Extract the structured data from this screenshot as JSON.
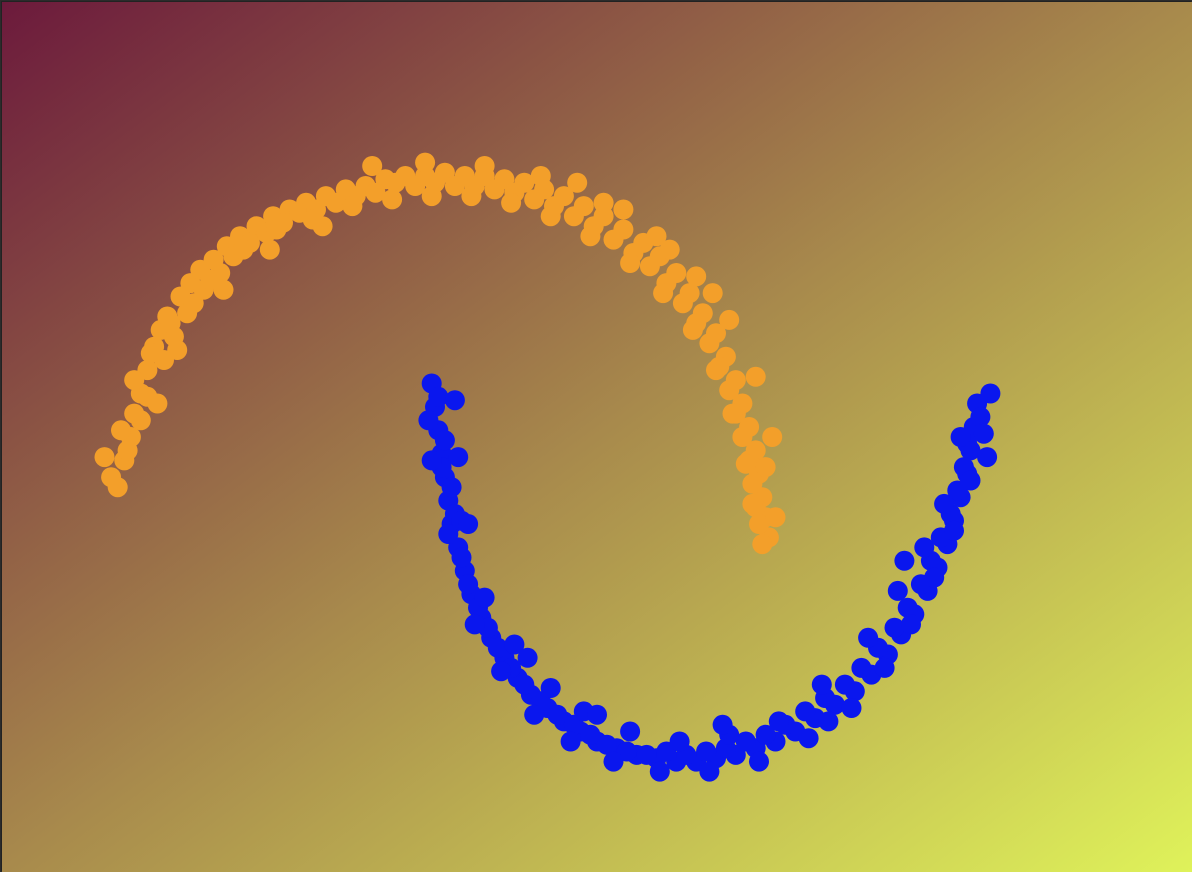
{
  "chart_data": {
    "type": "scatter",
    "title": "",
    "xlabel": "",
    "ylabel": "",
    "xlim": [
      -1.3,
      2.3
    ],
    "ylim": [
      -0.8,
      1.8
    ],
    "grid": false,
    "background_gradient": {
      "top_left": "#6c1a3c",
      "middle": "#a88a4c",
      "bottom_right": "#dff25a"
    },
    "series": [
      {
        "color": "#f39f2a",
        "points": [
          [
            -0.95,
            0.35
          ],
          [
            -0.93,
            0.43
          ],
          [
            -0.91,
            0.5
          ],
          [
            -0.9,
            0.57
          ],
          [
            -0.88,
            0.63
          ],
          [
            -0.86,
            0.7
          ],
          [
            -0.84,
            0.77
          ],
          [
            -0.82,
            0.82
          ],
          [
            -0.8,
            0.86
          ],
          [
            -0.76,
            0.92
          ],
          [
            -0.73,
            0.96
          ],
          [
            -0.7,
            1.0
          ],
          [
            -0.66,
            1.03
          ],
          [
            -0.62,
            1.07
          ],
          [
            -0.58,
            1.1
          ],
          [
            -0.53,
            1.13
          ],
          [
            -0.48,
            1.16
          ],
          [
            -0.43,
            1.18
          ],
          [
            -0.38,
            1.2
          ],
          [
            -0.32,
            1.22
          ],
          [
            -0.26,
            1.24
          ],
          [
            -0.2,
            1.25
          ],
          [
            -0.14,
            1.27
          ],
          [
            -0.08,
            1.28
          ],
          [
            -0.02,
            1.28
          ],
          [
            0.04,
            1.29
          ],
          [
            0.1,
            1.28
          ],
          [
            0.16,
            1.28
          ],
          [
            0.22,
            1.27
          ],
          [
            0.28,
            1.26
          ],
          [
            0.34,
            1.24
          ],
          [
            0.4,
            1.22
          ],
          [
            0.46,
            1.19
          ],
          [
            0.52,
            1.16
          ],
          [
            0.58,
            1.12
          ],
          [
            0.64,
            1.08
          ],
          [
            0.69,
            1.04
          ],
          [
            0.74,
            0.99
          ],
          [
            0.78,
            0.93
          ],
          [
            0.82,
            0.87
          ],
          [
            0.86,
            0.81
          ],
          [
            0.89,
            0.74
          ],
          [
            0.92,
            0.67
          ],
          [
            0.94,
            0.6
          ],
          [
            0.96,
            0.53
          ],
          [
            0.98,
            0.46
          ],
          [
            0.99,
            0.39
          ],
          [
            1.0,
            0.32
          ],
          [
            1.01,
            0.26
          ],
          [
            1.02,
            0.2
          ],
          [
            -0.97,
            0.38
          ],
          [
            -0.92,
            0.46
          ],
          [
            -0.88,
            0.55
          ],
          [
            -0.86,
            0.62
          ],
          [
            -0.81,
            0.73
          ],
          [
            -0.78,
            0.8
          ],
          [
            -0.74,
            0.87
          ],
          [
            -0.69,
            0.94
          ],
          [
            -0.64,
            0.99
          ],
          [
            -0.6,
            1.04
          ],
          [
            -0.55,
            1.08
          ],
          [
            -0.5,
            1.11
          ],
          [
            -0.45,
            1.14
          ],
          [
            -0.4,
            1.17
          ],
          [
            -0.35,
            1.18
          ],
          [
            -0.29,
            1.2
          ],
          [
            -0.23,
            1.22
          ],
          [
            -0.17,
            1.23
          ],
          [
            -0.11,
            1.26
          ],
          [
            -0.05,
            1.25
          ],
          [
            0.01,
            1.26
          ],
          [
            0.07,
            1.25
          ],
          [
            0.13,
            1.25
          ],
          [
            0.19,
            1.24
          ],
          [
            0.25,
            1.23
          ],
          [
            0.31,
            1.21
          ],
          [
            0.37,
            1.19
          ],
          [
            0.43,
            1.16
          ],
          [
            0.49,
            1.13
          ],
          [
            0.55,
            1.09
          ],
          [
            0.61,
            1.05
          ],
          [
            0.66,
            1.01
          ],
          [
            0.71,
            0.96
          ],
          [
            0.76,
            0.9
          ],
          [
            0.8,
            0.84
          ],
          [
            0.84,
            0.78
          ],
          [
            0.87,
            0.71
          ],
          [
            0.9,
            0.64
          ],
          [
            0.92,
            0.57
          ],
          [
            0.94,
            0.5
          ],
          [
            0.96,
            0.43
          ],
          [
            0.97,
            0.36
          ],
          [
            0.98,
            0.29
          ],
          [
            0.99,
            0.24
          ],
          [
            1.0,
            0.18
          ],
          [
            -0.99,
            0.44
          ],
          [
            -0.94,
            0.52
          ],
          [
            -0.9,
            0.67
          ],
          [
            -0.85,
            0.75
          ],
          [
            -0.79,
            0.84
          ],
          [
            -0.72,
            0.9
          ],
          [
            -0.67,
            0.97
          ],
          [
            -0.57,
            1.06
          ],
          [
            -0.47,
            1.12
          ],
          [
            -0.36,
            1.15
          ],
          [
            -0.24,
            1.19
          ],
          [
            -0.12,
            1.21
          ],
          [
            0.0,
            1.22
          ],
          [
            0.12,
            1.22
          ],
          [
            0.24,
            1.2
          ],
          [
            0.36,
            1.16
          ],
          [
            0.48,
            1.1
          ],
          [
            0.6,
            1.02
          ],
          [
            0.7,
            0.93
          ],
          [
            0.79,
            0.82
          ],
          [
            0.86,
            0.7
          ],
          [
            0.91,
            0.57
          ],
          [
            0.95,
            0.42
          ],
          [
            0.97,
            0.3
          ],
          [
            1.04,
            0.26
          ],
          [
            -0.18,
            1.31
          ],
          [
            -0.02,
            1.32
          ],
          [
            0.16,
            1.31
          ],
          [
            0.33,
            1.28
          ],
          [
            0.52,
            1.2
          ],
          [
            0.68,
            1.1
          ],
          [
            0.8,
            0.98
          ],
          [
            0.9,
            0.85
          ],
          [
            0.98,
            0.68
          ],
          [
            1.03,
            0.5
          ],
          [
            -0.83,
            0.6
          ],
          [
            -0.77,
            0.76
          ],
          [
            -0.63,
            0.94
          ],
          [
            -0.49,
            1.06
          ],
          [
            -0.33,
            1.13
          ],
          [
            0.44,
            1.26
          ],
          [
            0.58,
            1.18
          ],
          [
            0.72,
            1.06
          ],
          [
            0.85,
            0.93
          ],
          [
            1.01,
            0.41
          ]
        ]
      },
      {
        "color": "#0a17ee",
        "points": [
          [
            0.0,
            0.66
          ],
          [
            0.01,
            0.59
          ],
          [
            0.02,
            0.52
          ],
          [
            0.03,
            0.45
          ],
          [
            0.04,
            0.38
          ],
          [
            0.05,
            0.31
          ],
          [
            0.06,
            0.24
          ],
          [
            0.08,
            0.17
          ],
          [
            0.1,
            0.1
          ],
          [
            0.12,
            0.03
          ],
          [
            0.15,
            -0.04
          ],
          [
            0.18,
            -0.1
          ],
          [
            0.22,
            -0.16
          ],
          [
            0.26,
            -0.22
          ],
          [
            0.3,
            -0.27
          ],
          [
            0.35,
            -0.31
          ],
          [
            0.4,
            -0.35
          ],
          [
            0.45,
            -0.38
          ],
          [
            0.5,
            -0.41
          ],
          [
            0.56,
            -0.43
          ],
          [
            0.62,
            -0.45
          ],
          [
            0.68,
            -0.46
          ],
          [
            0.74,
            -0.47
          ],
          [
            0.8,
            -0.47
          ],
          [
            0.86,
            -0.46
          ],
          [
            0.92,
            -0.45
          ],
          [
            0.98,
            -0.43
          ],
          [
            1.04,
            -0.41
          ],
          [
            1.1,
            -0.38
          ],
          [
            1.16,
            -0.34
          ],
          [
            1.22,
            -0.3
          ],
          [
            1.28,
            -0.26
          ],
          [
            1.33,
            -0.21
          ],
          [
            1.38,
            -0.15
          ],
          [
            1.42,
            -0.09
          ],
          [
            1.46,
            -0.03
          ],
          [
            1.5,
            0.04
          ],
          [
            1.53,
            0.11
          ],
          [
            1.56,
            0.18
          ],
          [
            1.58,
            0.25
          ],
          [
            1.6,
            0.32
          ],
          [
            1.62,
            0.39
          ],
          [
            1.63,
            0.46
          ],
          [
            1.64,
            0.53
          ],
          [
            1.65,
            0.6
          ],
          [
            0.02,
            0.62
          ],
          [
            0.04,
            0.49
          ],
          [
            0.06,
            0.35
          ],
          [
            0.07,
            0.27
          ],
          [
            0.09,
            0.14
          ],
          [
            0.11,
            0.06
          ],
          [
            0.14,
            -0.01
          ],
          [
            0.17,
            -0.07
          ],
          [
            0.2,
            -0.13
          ],
          [
            0.24,
            -0.19
          ],
          [
            0.28,
            -0.24
          ],
          [
            0.33,
            -0.29
          ],
          [
            0.38,
            -0.33
          ],
          [
            0.43,
            -0.36
          ],
          [
            0.48,
            -0.39
          ],
          [
            0.53,
            -0.42
          ],
          [
            0.59,
            -0.44
          ],
          [
            0.65,
            -0.45
          ],
          [
            0.71,
            -0.44
          ],
          [
            0.77,
            -0.45
          ],
          [
            0.83,
            -0.44
          ],
          [
            0.89,
            -0.43
          ],
          [
            0.95,
            -0.41
          ],
          [
            1.01,
            -0.39
          ],
          [
            1.07,
            -0.36
          ],
          [
            1.13,
            -0.32
          ],
          [
            1.19,
            -0.28
          ],
          [
            1.25,
            -0.24
          ],
          [
            1.3,
            -0.19
          ],
          [
            1.35,
            -0.13
          ],
          [
            1.4,
            -0.07
          ],
          [
            1.44,
            -0.01
          ],
          [
            1.48,
            0.06
          ],
          [
            1.51,
            0.13
          ],
          [
            1.54,
            0.2
          ],
          [
            1.57,
            0.27
          ],
          [
            1.59,
            0.34
          ],
          [
            1.61,
            0.41
          ],
          [
            1.62,
            0.48
          ],
          [
            1.66,
            0.56
          ],
          [
            -0.01,
            0.55
          ],
          [
            0.03,
            0.41
          ],
          [
            0.05,
            0.21
          ],
          [
            0.13,
            -0.06
          ],
          [
            0.21,
            -0.2
          ],
          [
            0.31,
            -0.33
          ],
          [
            0.42,
            -0.41
          ],
          [
            0.55,
            -0.47
          ],
          [
            0.69,
            -0.5
          ],
          [
            0.84,
            -0.5
          ],
          [
            0.99,
            -0.47
          ],
          [
            1.14,
            -0.4
          ],
          [
            1.27,
            -0.31
          ],
          [
            1.37,
            -0.19
          ],
          [
            1.45,
            -0.06
          ],
          [
            1.52,
            0.08
          ],
          [
            1.58,
            0.22
          ],
          [
            1.63,
            0.37
          ],
          [
            1.67,
            0.51
          ],
          [
            1.69,
            0.63
          ],
          [
            0.07,
            0.61
          ],
          [
            0.08,
            0.44
          ],
          [
            0.09,
            0.25
          ],
          [
            0.16,
            0.02
          ],
          [
            0.25,
            -0.12
          ],
          [
            0.36,
            -0.25
          ],
          [
            0.46,
            -0.32
          ],
          [
            0.6,
            -0.38
          ],
          [
            0.75,
            -0.41
          ],
          [
            0.9,
            -0.39
          ],
          [
            1.05,
            -0.35
          ],
          [
            1.18,
            -0.24
          ],
          [
            1.32,
            -0.1
          ],
          [
            1.41,
            0.04
          ],
          [
            1.49,
            0.17
          ],
          [
            1.55,
            0.3
          ],
          [
            1.6,
            0.5
          ],
          [
            1.68,
            0.44
          ],
          [
            1.43,
            0.13
          ],
          [
            1.2,
            -0.35
          ],
          [
            0.88,
            -0.36
          ],
          [
            0.5,
            -0.33
          ],
          [
            0.29,
            -0.16
          ],
          [
            0.11,
            0.24
          ],
          [
            0.0,
            0.43
          ]
        ]
      }
    ]
  }
}
